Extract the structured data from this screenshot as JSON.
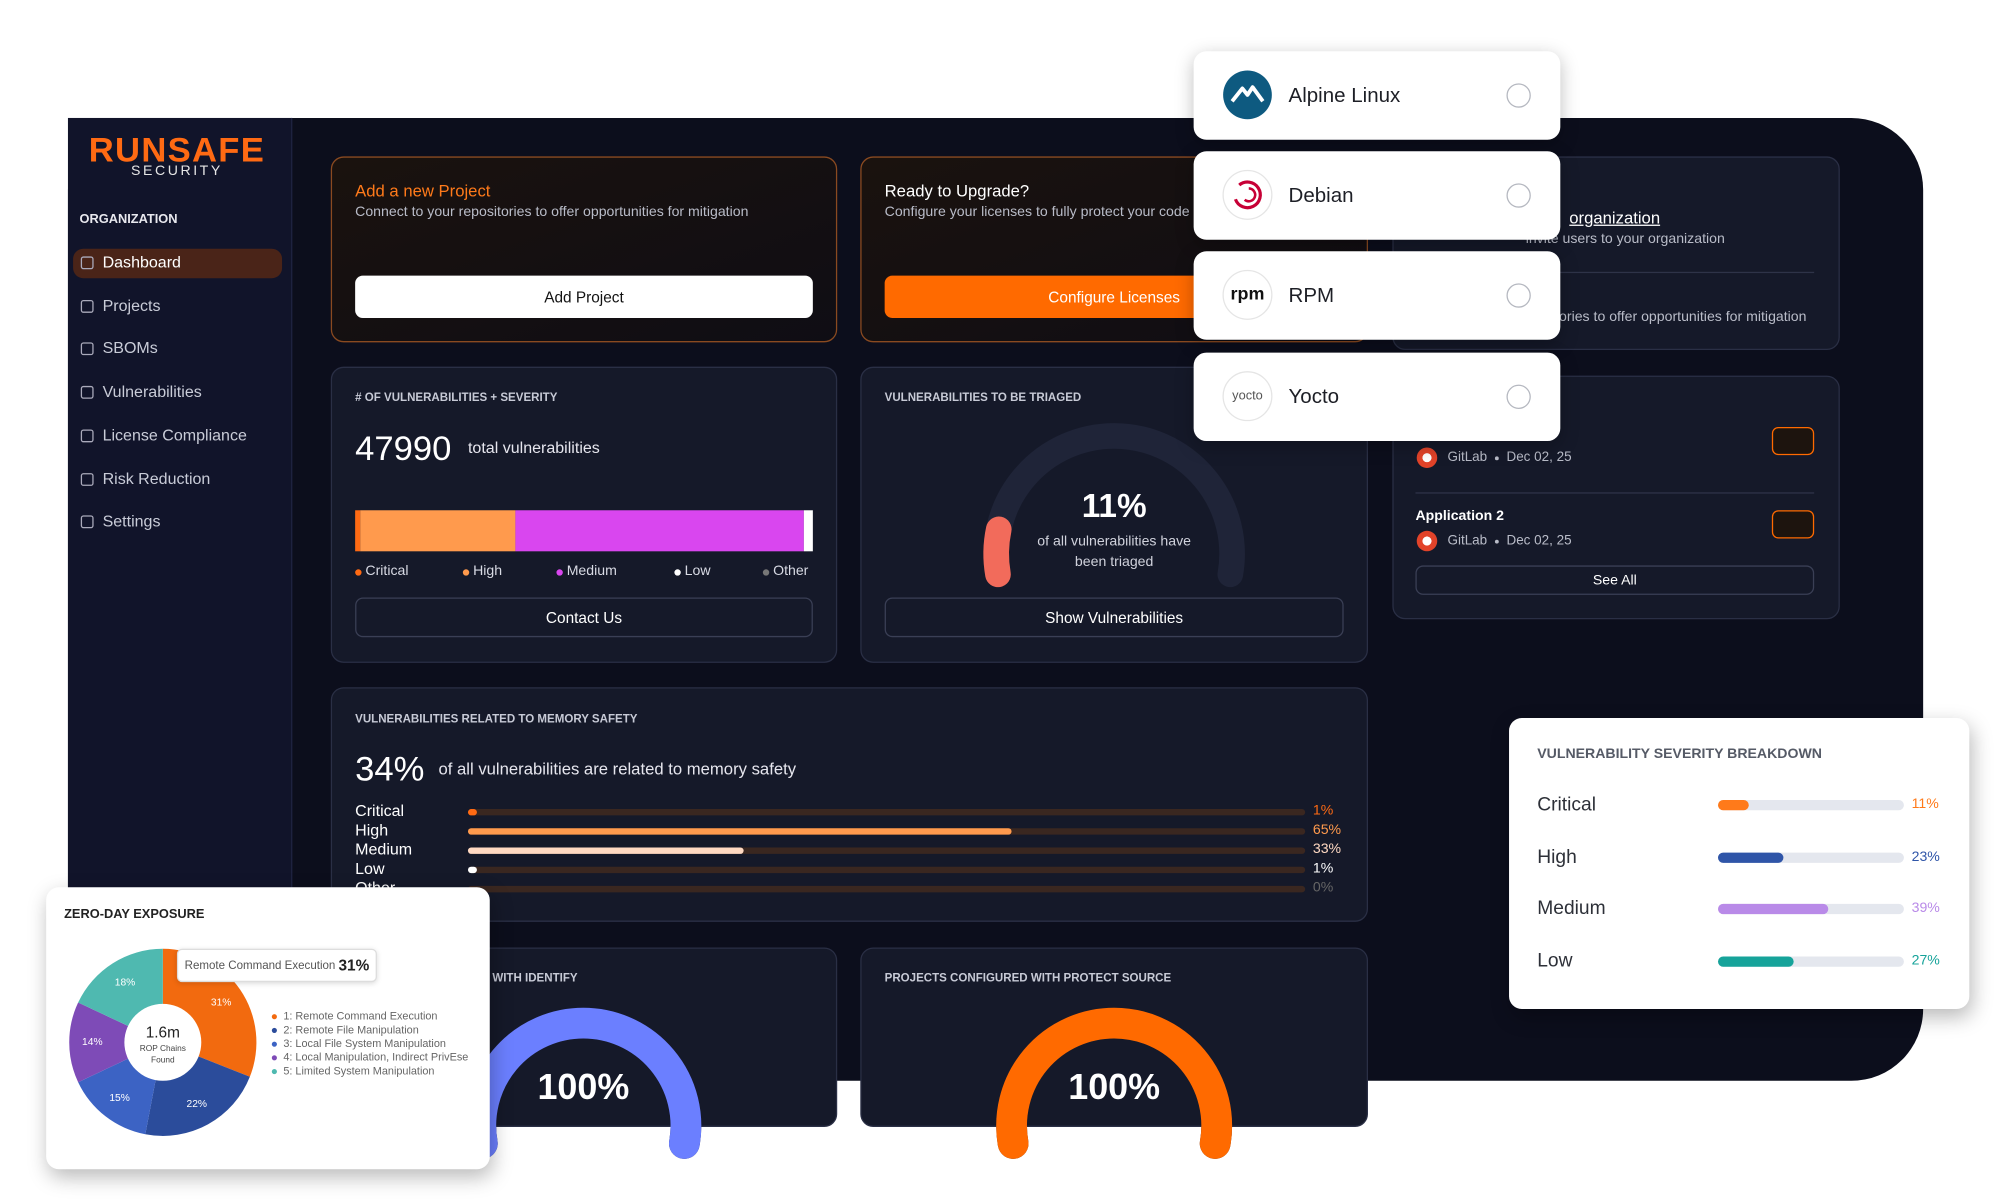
{
  "logo": {
    "brand": "RUNSAFE",
    "tagline": "SECURITY"
  },
  "sidebar": {
    "section": "ORGANIZATION",
    "items": [
      "Dashboard",
      "Projects",
      "SBOMs",
      "Vulnerabilities",
      "License Compliance",
      "Risk Reduction",
      "Settings"
    ],
    "active": 0
  },
  "add_project": {
    "title": "Add a new Project",
    "subtitle": "Connect to your repositories to offer opportunities for mitigation",
    "button": "Add Project"
  },
  "upgrade": {
    "title": "Ready to Upgrade?",
    "subtitle": "Configure your licenses to fully protect your code",
    "button": "Configure Licenses"
  },
  "invite": {
    "title": "organization",
    "subtitle": "invite users to your organization",
    "text": "ories to offer opportunities for mitigation"
  },
  "applications": {
    "items": [
      {
        "source": "GitLab",
        "date": "Dec 02, 25"
      },
      {
        "name": "Application 2",
        "source": "GitLab",
        "date": "Dec 02, 25"
      }
    ],
    "button": "See All"
  },
  "distributions": [
    {
      "name": "Alpine Linux"
    },
    {
      "name": "Debian"
    },
    {
      "name": "RPM",
      "logo_text": "rpm"
    },
    {
      "name": "Yocto",
      "logo_text": "yocto"
    }
  ],
  "chart_data": [
    {
      "type": "stacked-bar",
      "title": "# OF VULNERABILITIES + SEVERITY",
      "total": 47990,
      "total_label": "total vulnerabilities",
      "series": [
        {
          "name": "Critical",
          "color": "#ff6a13",
          "values": [
            1
          ]
        },
        {
          "name": "High",
          "color": "#ff9a4d",
          "values": [
            34
          ]
        },
        {
          "name": "Medium",
          "color": "#d946ef",
          "values": [
            63
          ]
        },
        {
          "name": "Low",
          "color": "#ffffff",
          "values": [
            2
          ]
        },
        {
          "name": "Other",
          "color": "#777777",
          "values": [
            0
          ]
        }
      ],
      "xlim": [
        0,
        100
      ],
      "button": "Contact Us"
    },
    {
      "type": "gauge",
      "title": "VULNERABILITIES TO BE TRIAGED",
      "value": 11,
      "value_label": "11%",
      "caption": [
        "of all vulnerabilities have",
        "been triaged"
      ],
      "ylim": [
        0,
        100
      ],
      "color": "#f26b5b",
      "button": "Show Vulnerabilities"
    },
    {
      "type": "bar",
      "title": "VULNERABILITIES RELATED TO MEMORY SAFETY",
      "headline": {
        "value": 34,
        "label": "34%"
      },
      "headline_text": "of all vulnerabilities are related to memory safety",
      "categories": [
        "Critical",
        "High",
        "Medium",
        "Low",
        "Other"
      ],
      "values": [
        1,
        65,
        33,
        1,
        0
      ],
      "value_labels": [
        "1%",
        "65%",
        "33%",
        "1%",
        "0%"
      ],
      "colors": [
        "#ff6a13",
        "#ff9a4d",
        "#ffd9c2",
        "#ffffff",
        "#666666"
      ],
      "xlim": [
        0,
        100
      ]
    },
    {
      "type": "gauge",
      "title": "WITH IDENTIFY",
      "value": 100,
      "value_label": "100%",
      "ylim": [
        0,
        100
      ],
      "color": "#6b7fff"
    },
    {
      "type": "gauge",
      "title": "PROJECTS CONFIGURED WITH PROTECT SOURCE",
      "value": 100,
      "value_label": "100%",
      "ylim": [
        0,
        100
      ],
      "color": "#ff6a00"
    },
    {
      "type": "donut",
      "title": "ZERO-DAY EXPOSURE",
      "categories": [
        "1: Remote Command Execution",
        "2: Remote File Manipulation",
        "3: Local File System Manipulation",
        "4: Local Manipulation, Indirect PrivEse",
        "5: Limited System Manipulation"
      ],
      "values": [
        31,
        22,
        15,
        14,
        18
      ],
      "value_labels": [
        "31%",
        "22%",
        "15%",
        "14%",
        "18%"
      ],
      "colors": [
        "#f26a0f",
        "#2b4c9b",
        "#3c63c4",
        "#7e4bb7",
        "#4fb9b0"
      ],
      "center_value": {
        "value": 1600000,
        "label": "1.6m"
      },
      "center_label": [
        "ROP Chains",
        "Found"
      ],
      "tooltip": {
        "name": "Remote Command Execution",
        "label": "31%"
      }
    },
    {
      "type": "bar",
      "title": "VULNERABILITY SEVERITY BREAKDOWN",
      "categories": [
        "Critical",
        "High",
        "Medium",
        "Low"
      ],
      "values": [
        11,
        23,
        39,
        27
      ],
      "value_labels": [
        "11%",
        "23%",
        "39%",
        "27%"
      ],
      "colors": [
        "#ff7a1a",
        "#2f55a8",
        "#b98ae8",
        "#16a39a"
      ],
      "xlim": [
        0,
        66
      ]
    }
  ]
}
